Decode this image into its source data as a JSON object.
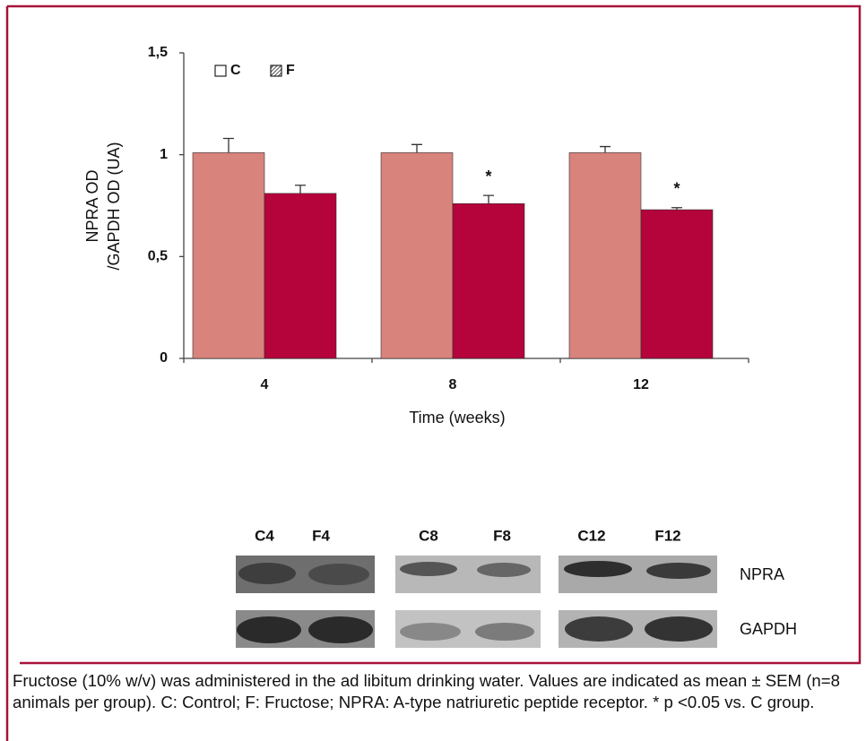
{
  "chart_data": {
    "type": "bar",
    "ylabel": [
      "NPRA OD",
      "/GAPDH OD (UA)"
    ],
    "xlabel": "Time (weeks)",
    "categories": [
      "4",
      "8",
      "12"
    ],
    "series": [
      {
        "name": "C",
        "color": "#d9837d",
        "values": [
          1.01,
          1.01,
          1.01
        ],
        "errors": [
          0.07,
          0.04,
          0.03
        ]
      },
      {
        "name": "F",
        "color": "#b5033b",
        "values": [
          0.81,
          0.76,
          0.73
        ],
        "errors": [
          0.04,
          0.04,
          0.01
        ],
        "markers": [
          null,
          "*",
          "*"
        ]
      }
    ],
    "ylim": [
      0,
      1.5
    ],
    "yticks": [
      0,
      {
        "value": 0.5,
        "label": "0,5"
      },
      1,
      {
        "value": 1.5,
        "label": "1,5"
      }
    ],
    "legend": "upper left"
  },
  "blot": {
    "lanes": [
      "C4",
      "F4",
      "C8",
      "F8",
      "C12",
      "F12"
    ],
    "rows": [
      "NPRA",
      "GAPDH"
    ]
  },
  "caption": "Fructose (10% w/v) was administered in the ad libitum drinking water. Values are indicated as mean ± SEM (n=8 animals per group). C: Control; F: Fructose; NPRA: A-type natriuretic peptide receptor. * p <0.05 vs. C group."
}
